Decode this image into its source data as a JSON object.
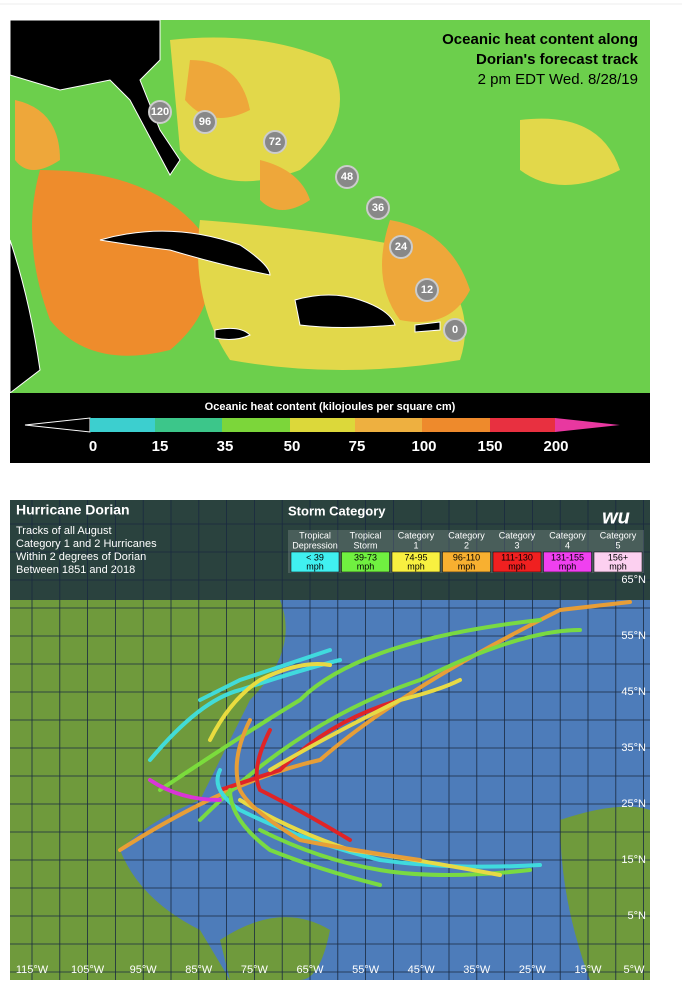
{
  "heat_map": {
    "title": [
      "Oceanic heat content along",
      "Dorian's forecast track",
      "2 pm EDT Wed. 8/28/19"
    ],
    "track_labels": [
      "120",
      "96",
      "72",
      "48",
      "36",
      "24",
      "12",
      "0"
    ],
    "legend_title": "Oceanic heat content (kilojoules per square cm)",
    "legend_labels": [
      "0",
      "15",
      "35",
      "50",
      "75",
      "100",
      "150",
      "200"
    ]
  },
  "track_map": {
    "title": "Hurricane Dorian",
    "subtitle": [
      "Tracks of all August",
      "Category 1 and 2 Hurricanes",
      "Within 2 degrees of Dorian",
      "Between 1851 and 2018"
    ],
    "legend_title": "Storm Category",
    "logo": "wu",
    "categories": [
      {
        "name": [
          "Tropical",
          "Depression"
        ],
        "range": [
          "< 39",
          "mph"
        ]
      },
      {
        "name": [
          "Tropical",
          "Storm"
        ],
        "range": [
          "39-73",
          "mph"
        ]
      },
      {
        "name": [
          "Category",
          "1"
        ],
        "range": [
          "74-95",
          "mph"
        ]
      },
      {
        "name": [
          "Category",
          "2"
        ],
        "range": [
          "96-110",
          "mph"
        ]
      },
      {
        "name": [
          "Category",
          "3"
        ],
        "range": [
          "111-130",
          "mph"
        ]
      },
      {
        "name": [
          "Category",
          "4"
        ],
        "range": [
          "131-155",
          "mph"
        ]
      },
      {
        "name": [
          "Category",
          "5"
        ],
        "range": [
          "156+",
          "mph"
        ]
      }
    ],
    "lat_labels": [
      "65°N",
      "55°N",
      "45°N",
      "35°N",
      "25°N",
      "15°N",
      "5°N"
    ],
    "lon_labels": [
      "115°W",
      "105°W",
      "95°W",
      "85°W",
      "75°W",
      "65°W",
      "55°W",
      "45°W",
      "35°W",
      "25°W",
      "15°W",
      "5°W"
    ]
  }
}
